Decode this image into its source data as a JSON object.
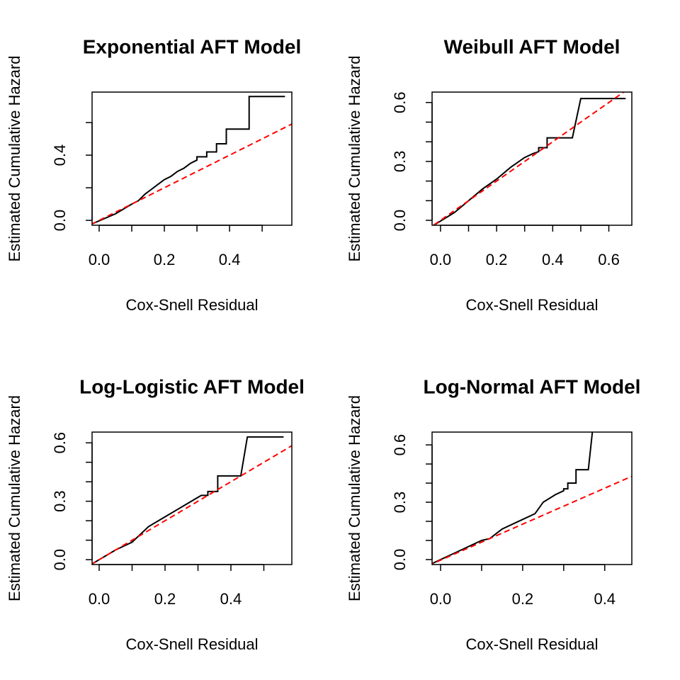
{
  "chart_data": [
    {
      "type": "line",
      "title": "Exponential AFT Model",
      "xlabel": "Cox-Snell Residual",
      "ylabel": "Estimated Cumulative Hazard",
      "xlim": [
        -0.0217,
        0.591
      ],
      "ylim": [
        -0.03,
        0.787
      ],
      "xticks": [
        {
          "value": 0,
          "label": "0.0"
        },
        0.2,
        0.4
      ],
      "xticks_unlabeled": [
        0.1,
        0.3,
        0.5
      ],
      "yticks": [
        {
          "value": 0,
          "label": "0.0"
        },
        0.4
      ],
      "yticks_unlabeled": [
        0.2,
        0.6
      ],
      "series": [
        {
          "color": "#000000",
          "linestyle": "solid",
          "x": [
            -0.02,
            0.05,
            0.1,
            0.12,
            0.14,
            0.16,
            0.18,
            0.2,
            0.22,
            0.24,
            0.26,
            0.28,
            0.3,
            0.3,
            0.33,
            0.33,
            0.36,
            0.36,
            0.39,
            0.39,
            0.46,
            0.46,
            0.57
          ],
          "values": [
            -0.02,
            0.04,
            0.1,
            0.12,
            0.16,
            0.19,
            0.22,
            0.25,
            0.27,
            0.3,
            0.32,
            0.35,
            0.37,
            0.39,
            0.39,
            0.42,
            0.42,
            0.47,
            0.47,
            0.56,
            0.56,
            0.76,
            0.76
          ]
        },
        {
          "color": "#ff0000",
          "linestyle": "dashed",
          "x": [
            -0.05,
            0.8
          ],
          "values": [
            -0.05,
            0.8
          ]
        }
      ]
    },
    {
      "type": "line",
      "title": "Weibull AFT Model",
      "xlabel": "Cox-Snell Residual",
      "ylabel": "Estimated Cumulative Hazard",
      "xlim": [
        -0.03,
        0.682
      ],
      "ylim": [
        -0.025,
        0.653
      ],
      "xticks": [
        {
          "value": 0,
          "label": "0.0"
        },
        0.2,
        0.4,
        0.6
      ],
      "xticks_unlabeled": [
        0.1,
        0.3,
        0.5
      ],
      "yticks": [
        {
          "value": 0,
          "label": "0.0"
        },
        0.3,
        0.6
      ],
      "yticks_unlabeled": [
        0.1,
        0.2,
        0.4,
        0.5
      ],
      "series": [
        {
          "color": "#000000",
          "linestyle": "solid",
          "x": [
            -0.03,
            0.05,
            0.1,
            0.15,
            0.2,
            0.25,
            0.3,
            0.33,
            0.35,
            0.35,
            0.38,
            0.38,
            0.47,
            0.5,
            0.66
          ],
          "values": [
            -0.03,
            0.04,
            0.1,
            0.16,
            0.21,
            0.27,
            0.32,
            0.34,
            0.35,
            0.37,
            0.37,
            0.42,
            0.42,
            0.62,
            0.62
          ]
        },
        {
          "color": "#ff0000",
          "linestyle": "dashed",
          "x": [
            -0.05,
            0.8
          ],
          "values": [
            -0.05,
            0.8
          ]
        }
      ]
    },
    {
      "type": "line",
      "title": "Log-Logistic AFT Model",
      "xlabel": "Cox-Snell Residual",
      "ylabel": "Estimated Cumulative Hazard",
      "xlim": [
        -0.0215,
        0.585
      ],
      "ylim": [
        -0.025,
        0.655
      ],
      "xticks": [
        {
          "value": 0,
          "label": "0.0"
        },
        0.2,
        0.4
      ],
      "xticks_unlabeled": [
        0.1,
        0.3,
        0.5
      ],
      "yticks": [
        {
          "value": 0,
          "label": "0.0"
        },
        0.3,
        0.6
      ],
      "yticks_unlabeled": [
        0.1,
        0.2,
        0.4,
        0.5
      ],
      "series": [
        {
          "color": "#000000",
          "linestyle": "solid",
          "x": [
            -0.02,
            0.05,
            0.1,
            0.15,
            0.2,
            0.25,
            0.3,
            0.31,
            0.33,
            0.33,
            0.36,
            0.36,
            0.43,
            0.45,
            0.56
          ],
          "values": [
            -0.02,
            0.05,
            0.09,
            0.17,
            0.22,
            0.27,
            0.32,
            0.33,
            0.33,
            0.35,
            0.35,
            0.43,
            0.43,
            0.63,
            0.63
          ]
        },
        {
          "color": "#ff0000",
          "linestyle": "dashed",
          "x": [
            -0.05,
            0.8
          ],
          "values": [
            -0.05,
            0.8
          ]
        }
      ]
    },
    {
      "type": "line",
      "title": "Log-Normal AFT Model",
      "xlabel": "Cox-Snell Residual",
      "ylabel": "Estimated Cumulative Hazard",
      "xlim": [
        -0.0207,
        0.466
      ],
      "ylim": [
        -0.026,
        0.667
      ],
      "xticks": [
        {
          "value": 0,
          "label": "0.0"
        },
        0.2,
        0.4
      ],
      "xticks_unlabeled": [
        0.1,
        0.3
      ],
      "yticks": [
        {
          "value": 0,
          "label": "0.0"
        },
        0.3,
        0.6
      ],
      "yticks_unlabeled": [
        0.1,
        0.2,
        0.4,
        0.5
      ],
      "series": [
        {
          "color": "#000000",
          "linestyle": "solid",
          "x": [
            -0.02,
            0.05,
            0.1,
            0.12,
            0.15,
            0.2,
            0.23,
            0.25,
            0.28,
            0.3,
            0.3,
            0.31,
            0.31,
            0.33,
            0.33,
            0.36,
            0.37,
            0.45
          ],
          "values": [
            -0.02,
            0.05,
            0.1,
            0.11,
            0.16,
            0.21,
            0.24,
            0.3,
            0.34,
            0.36,
            0.37,
            0.37,
            0.4,
            0.4,
            0.47,
            0.47,
            0.67,
            0.67
          ]
        },
        {
          "color": "#ff0000",
          "linestyle": "dashed",
          "x": [
            -0.05,
            0.8
          ],
          "values": [
            -0.05,
            0.75
          ]
        }
      ]
    }
  ]
}
